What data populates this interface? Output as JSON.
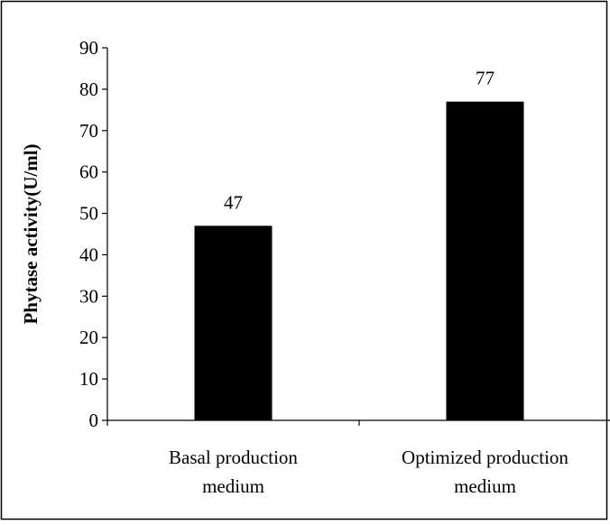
{
  "chart_data": {
    "type": "bar",
    "title": "",
    "xlabel": "",
    "ylabel": "Phytase activity(U/ml)",
    "ylim": [
      0,
      90
    ],
    "yticks": [
      0,
      10,
      20,
      30,
      40,
      50,
      60,
      70,
      80,
      90
    ],
    "grid": false,
    "legend": "none",
    "categories": [
      [
        "Basal production",
        "medium"
      ],
      [
        "Optimized production",
        "medium"
      ]
    ],
    "values": [
      47,
      77
    ],
    "data_labels": [
      "47",
      "77"
    ],
    "bar_color": "#000000"
  }
}
